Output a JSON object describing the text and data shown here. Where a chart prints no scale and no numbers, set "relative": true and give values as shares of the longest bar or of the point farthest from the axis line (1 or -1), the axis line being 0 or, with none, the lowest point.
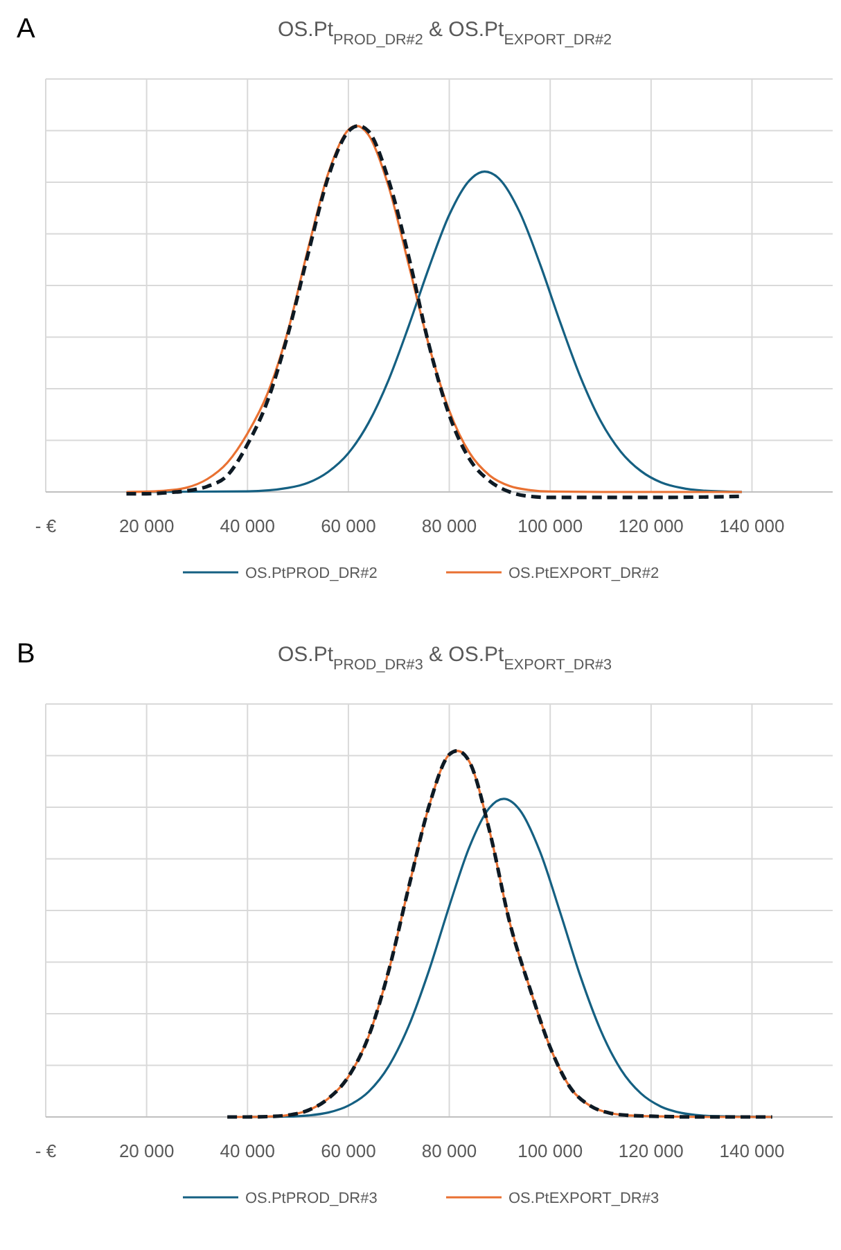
{
  "chart_data": [
    {
      "type": "line",
      "title": "OS.Pt$_{PROD_DR#2}$ & OS.Pt$_{EXPORT_DR#2}$",
      "annotations": [
        "A"
      ],
      "relative": true,
      "grid": true,
      "legend": "bottom",
      "xlim": [
        0,
        156000
      ],
      "xticks": [
        {
          "value": 0,
          "label": "- €"
        },
        {
          "value": 20000,
          "label": "20 000"
        },
        {
          "value": 40000,
          "label": "40 000"
        },
        {
          "value": 60000,
          "label": "60 000"
        },
        {
          "value": 80000,
          "label": "80 000"
        },
        {
          "value": 100000,
          "label": "100 000"
        },
        {
          "value": 120000,
          "label": "120 000"
        },
        {
          "value": 140000,
          "label": "140 000"
        }
      ],
      "series": [
        {
          "name": "OS.PtPROD_DR#2",
          "color": "#156082",
          "line_style": "solid",
          "x": [
            20000,
            40000,
            48000,
            52000,
            56000,
            60000,
            64000,
            68000,
            72000,
            76000,
            80000,
            84000,
            87000,
            90000,
            94000,
            98000,
            102000,
            106000,
            110000,
            114000,
            118000,
            122000,
            126000,
            130000,
            138000
          ],
          "values": [
            0,
            0.0015,
            0.011,
            0.025,
            0.055,
            0.106,
            0.189,
            0.307,
            0.455,
            0.614,
            0.757,
            0.851,
            0.875,
            0.854,
            0.763,
            0.622,
            0.463,
            0.314,
            0.194,
            0.11,
            0.057,
            0.026,
            0.011,
            0.004,
            0
          ]
        },
        {
          "name": "OS.PtEXPORT_DR#2",
          "color": "#e97132",
          "line_style": "solid",
          "x": [
            16000,
            20000,
            24000,
            28000,
            32000,
            36000,
            40000,
            44000,
            48000,
            52000,
            56000,
            60000,
            61600,
            64000,
            68000,
            72000,
            76000,
            80000,
            84000,
            88000,
            92000,
            96000,
            100000,
            110000,
            120000,
            138000
          ],
          "values": [
            0,
            0.001,
            0.004,
            0.012,
            0.035,
            0.08,
            0.16,
            0.27,
            0.439,
            0.664,
            0.87,
            0.989,
            1,
            0.975,
            0.833,
            0.618,
            0.398,
            0.222,
            0.107,
            0.045,
            0.016,
            0.005,
            0.001,
            0,
            0,
            0
          ]
        },
        {
          "color": "#0e1a24",
          "line_style": "dashed",
          "x": [
            16000,
            20000,
            24000,
            28000,
            32000,
            36000,
            40000,
            44000,
            48000,
            52000,
            56000,
            60000,
            62000,
            64000,
            68000,
            72000,
            76000,
            80000,
            84000,
            88000,
            92000,
            96000,
            100000,
            120000,
            138000
          ],
          "values": [
            -0.005,
            -0.005,
            -0.002,
            0.003,
            0.015,
            0.045,
            0.13,
            0.25,
            0.43,
            0.65,
            0.86,
            0.985,
            1,
            0.985,
            0.85,
            0.64,
            0.4,
            0.21,
            0.09,
            0.03,
            0,
            -0.012,
            -0.015,
            -0.015,
            -0.012
          ]
        }
      ]
    },
    {
      "type": "line",
      "title": "OS.Pt$_{PROD_DR#3}$ & OS.Pt$_{EXPORT_DR#3}$",
      "annotations": [
        "B"
      ],
      "relative": true,
      "grid": true,
      "legend": "bottom",
      "xlim": [
        0,
        156000
      ],
      "xticks": [
        {
          "value": 0,
          "label": "- €"
        },
        {
          "value": 20000,
          "label": "20 000"
        },
        {
          "value": 40000,
          "label": "40 000"
        },
        {
          "value": 60000,
          "label": "60 000"
        },
        {
          "value": 80000,
          "label": "80 000"
        },
        {
          "value": 100000,
          "label": "100 000"
        },
        {
          "value": 120000,
          "label": "120 000"
        },
        {
          "value": 140000,
          "label": "140 000"
        }
      ],
      "series": [
        {
          "name": "OS.PtPROD_DR#3",
          "color": "#156082",
          "line_style": "solid",
          "x": [
            40000,
            48000,
            52000,
            56000,
            60000,
            64000,
            68000,
            72000,
            76000,
            80000,
            84000,
            88000,
            90800,
            94000,
            98000,
            102000,
            106000,
            110000,
            114000,
            118000,
            122000,
            126000,
            130000,
            136000,
            144000
          ],
          "values": [
            0,
            0.001,
            0.004,
            0.012,
            0.031,
            0.069,
            0.139,
            0.25,
            0.401,
            0.576,
            0.738,
            0.845,
            0.869,
            0.838,
            0.724,
            0.558,
            0.384,
            0.237,
            0.13,
            0.064,
            0.028,
            0.011,
            0.004,
            0.001,
            0
          ]
        },
        {
          "name": "OS.PtEXPORT_DR#3",
          "color": "#e97132",
          "line_style": "solid",
          "x": [
            36000,
            40000,
            44000,
            48000,
            52000,
            56000,
            60000,
            64000,
            68000,
            72000,
            76000,
            80000,
            81600,
            84000,
            88000,
            92000,
            96000,
            100000,
            104000,
            108000,
            112000,
            116000,
            120000,
            130000,
            144000
          ],
          "values": [
            0,
            0,
            0.001,
            0.005,
            0.018,
            0.05,
            0.11,
            0.22,
            0.4,
            0.63,
            0.85,
            0.99,
            1,
            0.97,
            0.78,
            0.53,
            0.35,
            0.19,
            0.08,
            0.03,
            0.01,
            0.004,
            0.002,
            0,
            0
          ]
        },
        {
          "color": "#0e1a24",
          "line_style": "dashed",
          "x": [
            36000,
            40000,
            44000,
            48000,
            52000,
            56000,
            60000,
            64000,
            68000,
            72000,
            76000,
            80000,
            81600,
            84000,
            88000,
            92000,
            96000,
            100000,
            104000,
            108000,
            112000,
            116000,
            120000,
            130000,
            144000
          ],
          "values": [
            0,
            0,
            0.001,
            0.005,
            0.018,
            0.05,
            0.11,
            0.22,
            0.4,
            0.63,
            0.85,
            0.99,
            1,
            0.97,
            0.78,
            0.53,
            0.35,
            0.19,
            0.08,
            0.03,
            0.01,
            0.004,
            0.002,
            0,
            0
          ]
        }
      ]
    }
  ]
}
